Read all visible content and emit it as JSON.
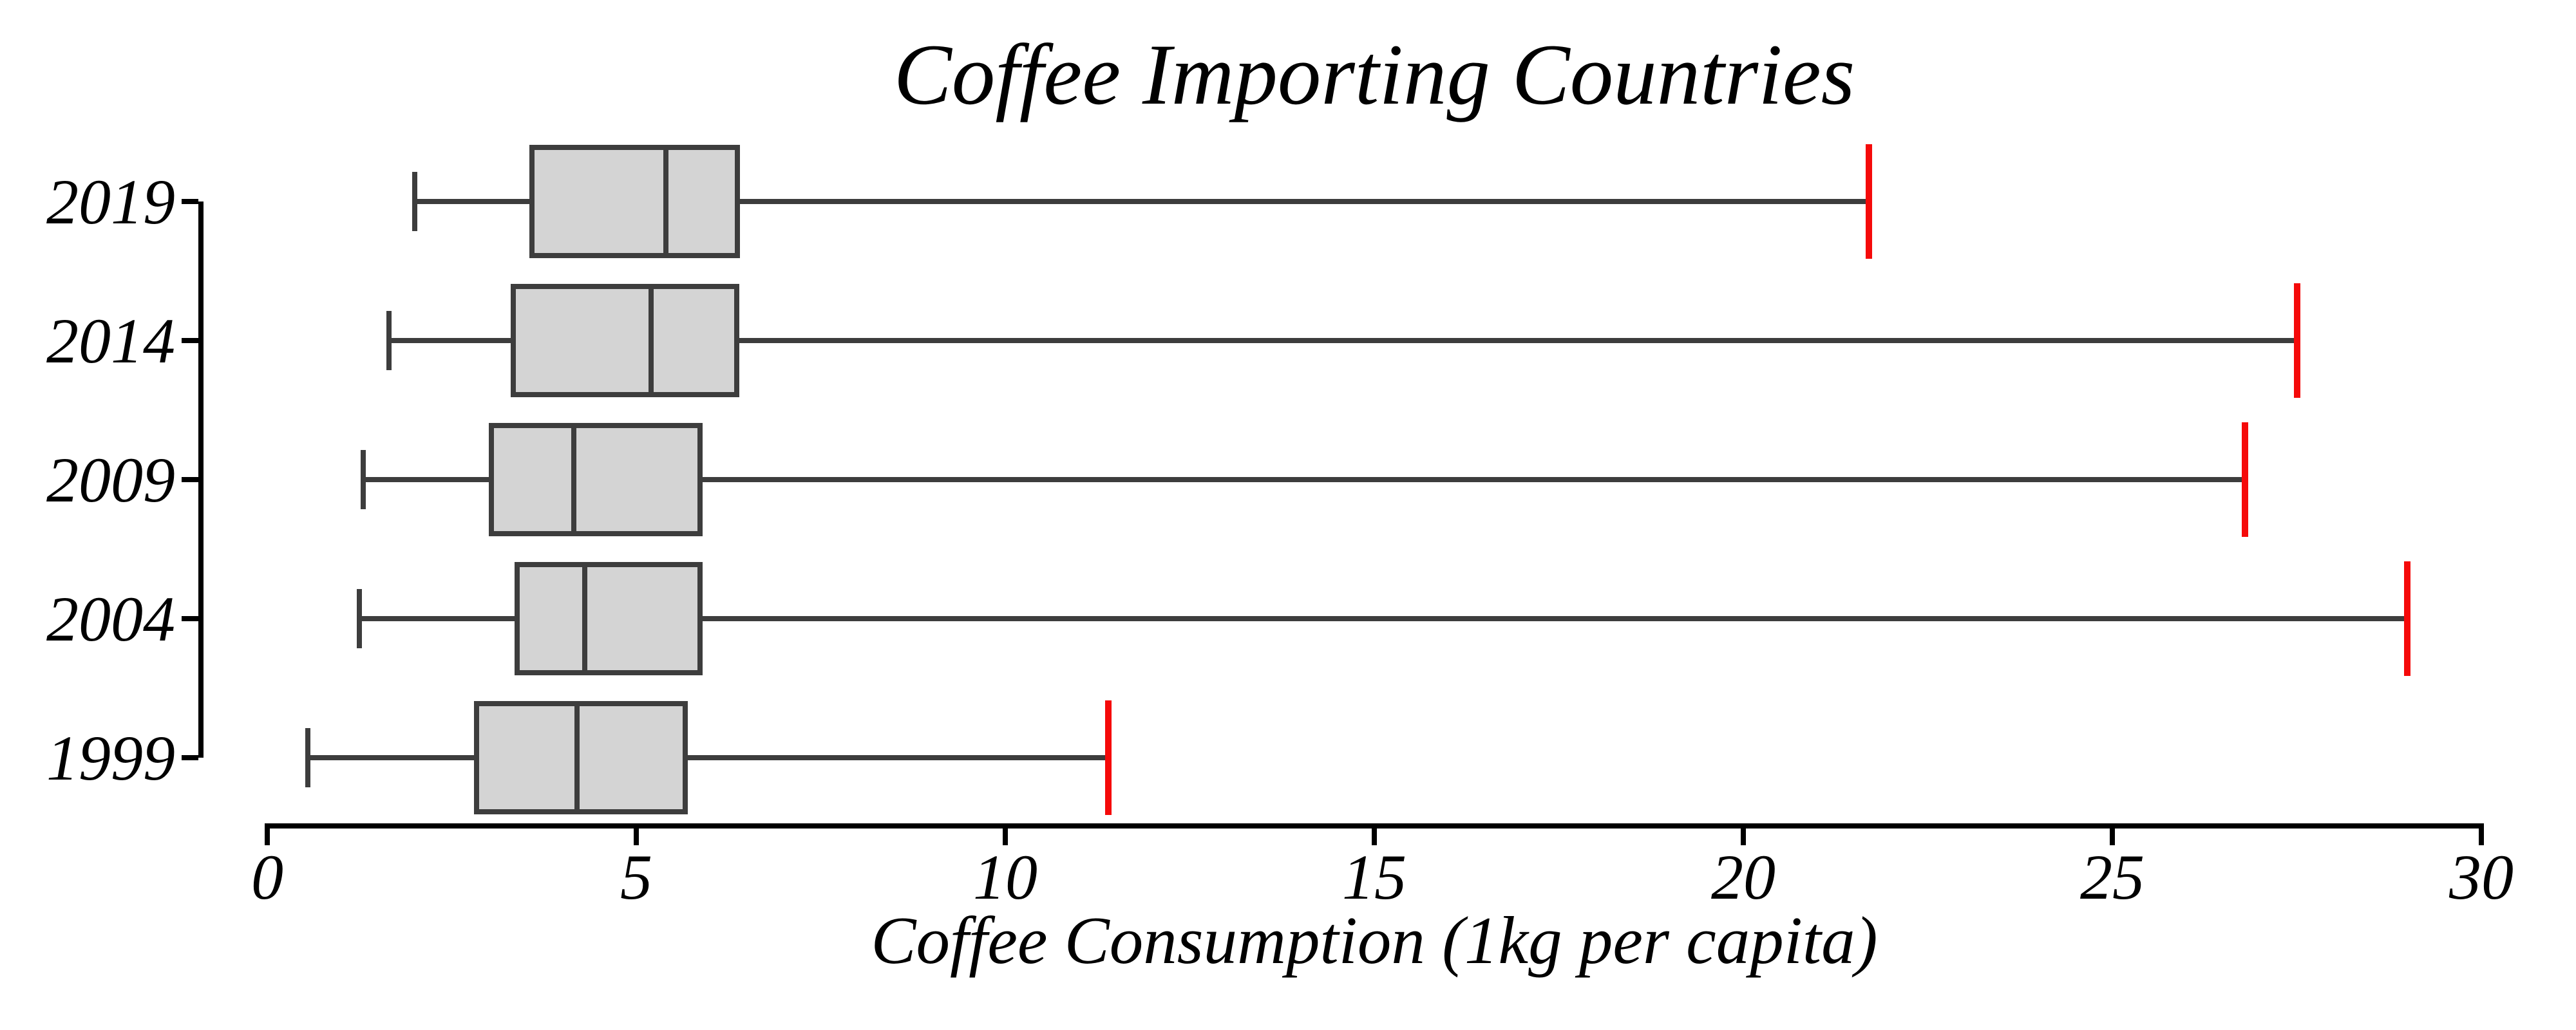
{
  "title": "Coffee Importing Countries",
  "x_axis": {
    "label": "Coffee Consumption (1kg per capita)",
    "tick_labels": [
      "0",
      "5",
      "10",
      "15",
      "20",
      "25",
      "30"
    ]
  },
  "y_axis": {
    "tick_labels": [
      "2019",
      "2014",
      "2009",
      "2004",
      "1999"
    ]
  },
  "chart_data": {
    "type": "boxplot",
    "orientation": "horizontal",
    "title": "Coffee Importing Countries",
    "xlabel": "Coffee Consumption (1kg per capita)",
    "ylabel": "",
    "xlim": [
      0,
      30
    ],
    "x_ticks": [
      0,
      5,
      10,
      15,
      20,
      25,
      30
    ],
    "grid": false,
    "legend": null,
    "categories": [
      "2019",
      "2014",
      "2009",
      "2004",
      "1999"
    ],
    "boxes": [
      {
        "category": "2019",
        "whisker_min": 2.0,
        "q1": 3.55,
        "median": 5.4,
        "q3": 6.4,
        "whisker_max": 21.7
      },
      {
        "category": "2014",
        "whisker_min": 1.65,
        "q1": 3.3,
        "median": 5.2,
        "q3": 6.4,
        "whisker_max": 27.5
      },
      {
        "category": "2009",
        "whisker_min": 1.3,
        "q1": 3.0,
        "median": 4.15,
        "q3": 5.9,
        "whisker_max": 26.8
      },
      {
        "category": "2004",
        "whisker_min": 1.25,
        "q1": 3.35,
        "median": 4.3,
        "q3": 5.9,
        "whisker_max": 29.0
      },
      {
        "category": "1999",
        "whisker_min": 0.55,
        "q1": 2.8,
        "median": 4.2,
        "q3": 5.7,
        "whisker_max": 11.4
      }
    ],
    "annotations": "maximum whisker end drawn as red vertical cap"
  },
  "colors": {
    "background": "#ffffff",
    "axis": "#000000",
    "text": "#000000",
    "box_fill": "#d4d4d4",
    "box_line": "#3d3d3d",
    "whisker_max_cap": "#f50a0a"
  }
}
